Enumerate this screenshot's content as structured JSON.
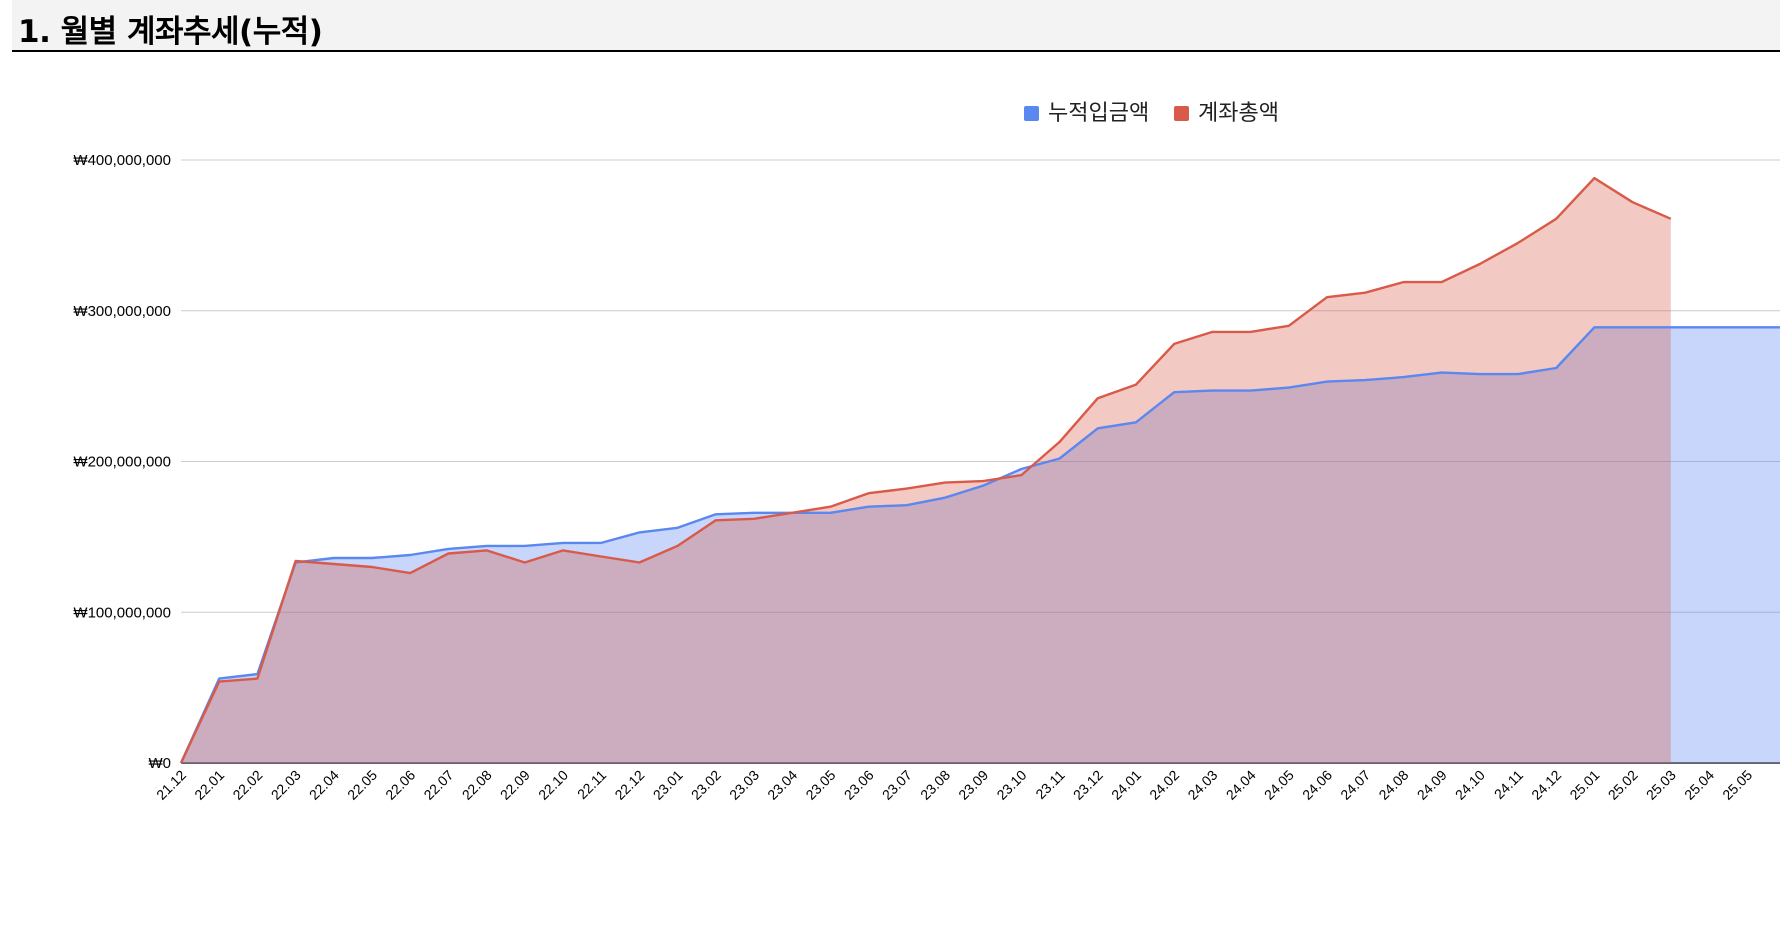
{
  "section": {
    "title": "1. 월별 계좌추세(누적)"
  },
  "chart_data": {
    "type": "area",
    "categories": [
      "21.12",
      "22.01",
      "22.02",
      "22.03",
      "22.04",
      "22.05",
      "22.06",
      "22.07",
      "22.08",
      "22.09",
      "22.10",
      "22.11",
      "22.12",
      "23.01",
      "23.02",
      "23.03",
      "23.04",
      "23.05",
      "23.06",
      "23.07",
      "23.08",
      "23.09",
      "23.10",
      "23.11",
      "23.12",
      "24.01",
      "24.02",
      "24.03",
      "24.04",
      "24.05",
      "24.06",
      "24.07",
      "24.08",
      "24.09",
      "24.10",
      "24.11",
      "24.12",
      "25.01",
      "25.02",
      "25.03",
      "25.04",
      "25.05"
    ],
    "series": [
      {
        "name": "누적입금액",
        "color": "#5b87f0",
        "values": [
          0,
          56,
          59,
          133,
          136,
          136,
          138,
          142,
          144,
          144,
          146,
          146,
          153,
          156,
          165,
          166,
          166,
          166,
          170,
          171,
          176,
          184,
          195,
          202,
          222,
          226,
          246,
          247,
          247,
          249,
          253,
          254,
          256,
          259,
          258,
          258,
          262,
          289,
          289,
          289,
          289,
          289
        ]
      },
      {
        "name": "계좌총액",
        "color": "#d95a48",
        "values": [
          0,
          54,
          56,
          134,
          132,
          130,
          126,
          139,
          141,
          133,
          141,
          137,
          133,
          144,
          161,
          162,
          166,
          170,
          179,
          182,
          186,
          187,
          191,
          213,
          242,
          251,
          278,
          286,
          286,
          290,
          309,
          312,
          319,
          319,
          331,
          345,
          361,
          388,
          372,
          361,
          null,
          null
        ]
      }
    ],
    "value_unit": "millions KRW",
    "yaxis": {
      "min": 0,
      "max": 400,
      "ticks": [
        {
          "value": 0,
          "label": "₩0"
        },
        {
          "value": 100,
          "label": "₩100,000,000"
        },
        {
          "value": 200,
          "label": "₩200,000,000"
        },
        {
          "value": 300,
          "label": "₩300,000,000"
        },
        {
          "value": 400,
          "label": "₩400,000,000"
        }
      ]
    },
    "grid": true,
    "legend_position": "top-center",
    "xlabel": "",
    "ylabel": ""
  }
}
